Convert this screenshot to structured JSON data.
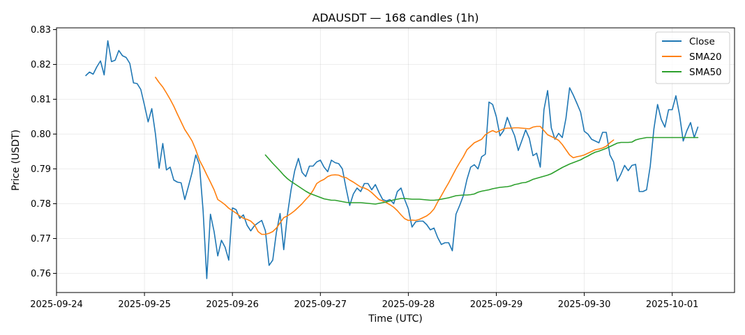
{
  "chart_data": {
    "type": "line",
    "title": "ADAUSDT — 168 candles (1h)",
    "xlabel": "Time (UTC)",
    "ylabel": "Price (USDT)",
    "x_start": "2025-09-24 08:00",
    "x_interval_hours": 1,
    "xlim": [
      "2025-09-24 00:00",
      "2025-10-01 17:00"
    ],
    "ylim": [
      0.7545,
      0.8305
    ],
    "x_ticks": [
      "2025-09-24",
      "2025-09-25",
      "2025-09-26",
      "2025-09-27",
      "2025-09-28",
      "2025-09-29",
      "2025-09-30",
      "2025-10-01"
    ],
    "y_ticks": [
      0.76,
      0.77,
      0.78,
      0.79,
      0.8,
      0.81,
      0.82,
      0.83
    ],
    "grid": true,
    "legend_position": "top-right",
    "series": [
      {
        "name": "Close",
        "color": "#1f77b4",
        "start_index": 0,
        "values": [
          0.8168,
          0.8178,
          0.8172,
          0.8193,
          0.821,
          0.817,
          0.8268,
          0.8208,
          0.8212,
          0.824,
          0.8225,
          0.822,
          0.8203,
          0.8147,
          0.8145,
          0.8128,
          0.8083,
          0.8035,
          0.8073,
          0.8,
          0.7902,
          0.7973,
          0.7897,
          0.7905,
          0.7868,
          0.7862,
          0.786,
          0.7812,
          0.785,
          0.789,
          0.794,
          0.7912,
          0.778,
          0.7585,
          0.777,
          0.772,
          0.765,
          0.7695,
          0.7675,
          0.7638,
          0.7788,
          0.7783,
          0.7758,
          0.7768,
          0.7738,
          0.7722,
          0.7737,
          0.7745,
          0.7752,
          0.7722,
          0.7623,
          0.7638,
          0.7718,
          0.7772,
          0.7668,
          0.7768,
          0.784,
          0.7895,
          0.793,
          0.789,
          0.7878,
          0.7908,
          0.7908,
          0.792,
          0.7925,
          0.7905,
          0.7892,
          0.7925,
          0.7918,
          0.7915,
          0.79,
          0.7845,
          0.7795,
          0.7828,
          0.7845,
          0.7835,
          0.7858,
          0.7858,
          0.784,
          0.7855,
          0.7832,
          0.7812,
          0.7808,
          0.7812,
          0.78,
          0.7835,
          0.7845,
          0.7812,
          0.7785,
          0.7733,
          0.7748,
          0.775,
          0.775,
          0.774,
          0.7725,
          0.773,
          0.7703,
          0.7683,
          0.7688,
          0.7688,
          0.7665,
          0.777,
          0.7795,
          0.7823,
          0.787,
          0.7905,
          0.7912,
          0.79,
          0.7935,
          0.7942,
          0.8092,
          0.8085,
          0.805,
          0.7995,
          0.801,
          0.8048,
          0.802,
          0.7995,
          0.7953,
          0.7982,
          0.8012,
          0.7988,
          0.7938,
          0.7945,
          0.7905,
          0.807,
          0.8125,
          0.8018,
          0.7985,
          0.8002,
          0.799,
          0.8045,
          0.8133,
          0.8112,
          0.8088,
          0.8063,
          0.8008,
          0.8,
          0.7985,
          0.798,
          0.7975,
          0.8005,
          0.8005,
          0.794,
          0.792,
          0.7865,
          0.7885,
          0.791,
          0.7895,
          0.791,
          0.7913,
          0.7835,
          0.7835,
          0.784,
          0.7908,
          0.8015,
          0.8085,
          0.8042,
          0.802,
          0.807,
          0.807,
          0.811,
          0.8055,
          0.798,
          0.801,
          0.8033,
          0.799,
          0.802
        ]
      },
      {
        "name": "SMA20",
        "color": "#ff7f0e",
        "start_index": 19,
        "values": [
          0.8163,
          0.8148,
          0.8135,
          0.8118,
          0.81,
          0.808,
          0.8057,
          0.8035,
          0.8013,
          0.7997,
          0.798,
          0.7955,
          0.7925,
          0.7905,
          0.7883,
          0.7862,
          0.784,
          0.7812,
          0.7805,
          0.7797,
          0.7787,
          0.778,
          0.7773,
          0.7765,
          0.7758,
          0.7755,
          0.775,
          0.774,
          0.772,
          0.7712,
          0.7712,
          0.7715,
          0.772,
          0.773,
          0.7745,
          0.776,
          0.7765,
          0.7772,
          0.778,
          0.779,
          0.78,
          0.7812,
          0.7823,
          0.7838,
          0.7858,
          0.7865,
          0.787,
          0.7878,
          0.7882,
          0.7883,
          0.7882,
          0.7877,
          0.7875,
          0.7868,
          0.7862,
          0.7855,
          0.7848,
          0.7845,
          0.784,
          0.7832,
          0.7822,
          0.7812,
          0.7808,
          0.7803,
          0.7797,
          0.779,
          0.778,
          0.7768,
          0.7757,
          0.7752,
          0.7753,
          0.7752,
          0.7755,
          0.776,
          0.7765,
          0.7773,
          0.7785,
          0.7805,
          0.7823,
          0.7842,
          0.786,
          0.788,
          0.79,
          0.7918,
          0.7935,
          0.7955,
          0.7965,
          0.7975,
          0.798,
          0.7985,
          0.7998,
          0.8005,
          0.801,
          0.8005,
          0.801,
          0.8015,
          0.8017,
          0.8017,
          0.8018,
          0.8018,
          0.8017,
          0.8016,
          0.8015,
          0.802,
          0.8022,
          0.8022,
          0.801,
          0.7998,
          0.7993,
          0.7988,
          0.7982,
          0.797,
          0.7955,
          0.794,
          0.7932,
          0.7935,
          0.7937,
          0.794,
          0.7945,
          0.795,
          0.7955,
          0.7957,
          0.796,
          0.7965,
          0.7975,
          0.7983
        ]
      },
      {
        "name": "SMA50",
        "color": "#2ca02c",
        "start_index": 49,
        "values": [
          0.794,
          0.7928,
          0.7916,
          0.7905,
          0.7894,
          0.7882,
          0.7872,
          0.7864,
          0.7857,
          0.785,
          0.7843,
          0.7836,
          0.783,
          0.7826,
          0.7822,
          0.7818,
          0.7814,
          0.7812,
          0.781,
          0.781,
          0.7808,
          0.7806,
          0.7804,
          0.7803,
          0.7803,
          0.7803,
          0.7803,
          0.7802,
          0.7801,
          0.78,
          0.7799,
          0.7801,
          0.7803,
          0.7805,
          0.7808,
          0.7811,
          0.7813,
          0.7815,
          0.7815,
          0.7814,
          0.7813,
          0.7813,
          0.7813,
          0.7812,
          0.7811,
          0.781,
          0.781,
          0.7811,
          0.7813,
          0.7815,
          0.7817,
          0.782,
          0.7823,
          0.7824,
          0.7825,
          0.7825,
          0.7826,
          0.7828,
          0.7833,
          0.7836,
          0.7838,
          0.784,
          0.7843,
          0.7845,
          0.7847,
          0.7848,
          0.7849,
          0.7851,
          0.7855,
          0.7857,
          0.786,
          0.7861,
          0.7865,
          0.787,
          0.7873,
          0.7876,
          0.7879,
          0.7882,
          0.7886,
          0.7892,
          0.7898,
          0.7904,
          0.7909,
          0.7914,
          0.7918,
          0.7922,
          0.7926,
          0.7932,
          0.7937,
          0.7943,
          0.7948,
          0.7951,
          0.7955,
          0.7959,
          0.7964,
          0.7969,
          0.7974,
          0.7976,
          0.7976,
          0.7976,
          0.7977,
          0.7983,
          0.7986,
          0.7988,
          0.799,
          0.799,
          0.799,
          0.799,
          0.799,
          0.799,
          0.799,
          0.799,
          0.799,
          0.799,
          0.799,
          0.799,
          0.799,
          0.799,
          0.799
        ]
      }
    ]
  }
}
